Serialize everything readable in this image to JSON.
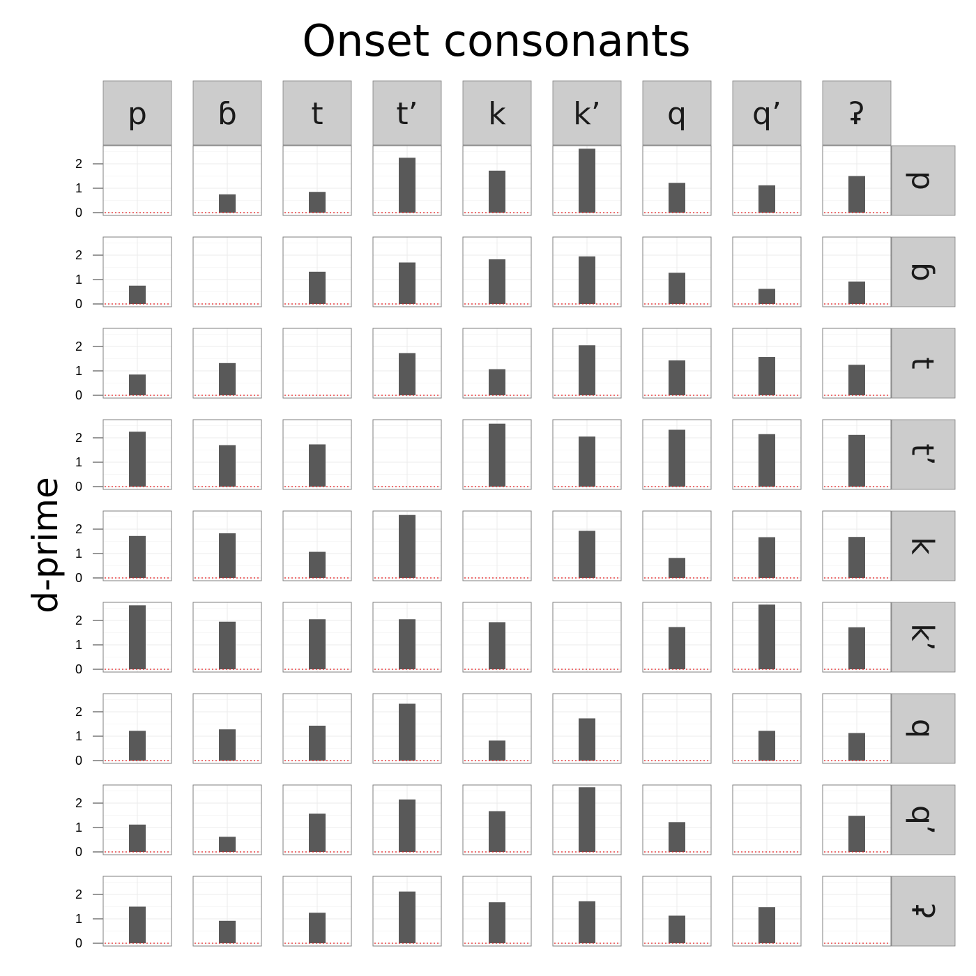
{
  "chart_data": {
    "type": "bar",
    "title": "Onset consonants",
    "ylabel": "d-prime",
    "xlabel": "",
    "column_labels": [
      "p",
      "ɓ",
      "t",
      "t’",
      "k",
      "k’",
      "q",
      "q’",
      "ʡ"
    ],
    "row_labels": [
      "p",
      "ɓ",
      "t",
      "t’",
      "k",
      "k’",
      "q",
      "q’",
      "ʡ"
    ],
    "yticks": [
      "0",
      "1",
      "2"
    ],
    "ylim": [
      0,
      2.75
    ],
    "reference_line": 0,
    "grid": true,
    "values": [
      [
        null,
        0.75,
        0.85,
        2.25,
        1.72,
        2.62,
        1.22,
        1.12,
        1.5
      ],
      [
        0.75,
        null,
        1.32,
        1.7,
        1.83,
        1.95,
        1.28,
        0.62,
        0.92
      ],
      [
        0.85,
        1.32,
        null,
        1.73,
        1.07,
        2.05,
        1.43,
        1.57,
        1.25
      ],
      [
        2.25,
        1.7,
        1.73,
        null,
        2.58,
        2.05,
        2.33,
        2.15,
        2.12
      ],
      [
        1.72,
        1.83,
        1.07,
        2.58,
        null,
        1.93,
        0.82,
        1.67,
        1.68
      ],
      [
        2.62,
        1.95,
        2.05,
        2.05,
        1.93,
        null,
        1.73,
        2.65,
        1.72
      ],
      [
        1.22,
        1.28,
        1.43,
        2.33,
        0.82,
        1.73,
        null,
        1.22,
        1.13
      ],
      [
        1.12,
        0.62,
        1.57,
        2.15,
        1.67,
        2.65,
        1.22,
        null,
        1.48
      ],
      [
        1.5,
        0.92,
        1.25,
        2.12,
        1.68,
        1.72,
        1.13,
        1.48,
        null
      ]
    ]
  },
  "colors": {
    "bar": "#595959",
    "strip_background": "#cccccc",
    "panel_border": "#7f7f7f",
    "grid": "#ebebeb",
    "reference_line": "#e31a1c"
  }
}
